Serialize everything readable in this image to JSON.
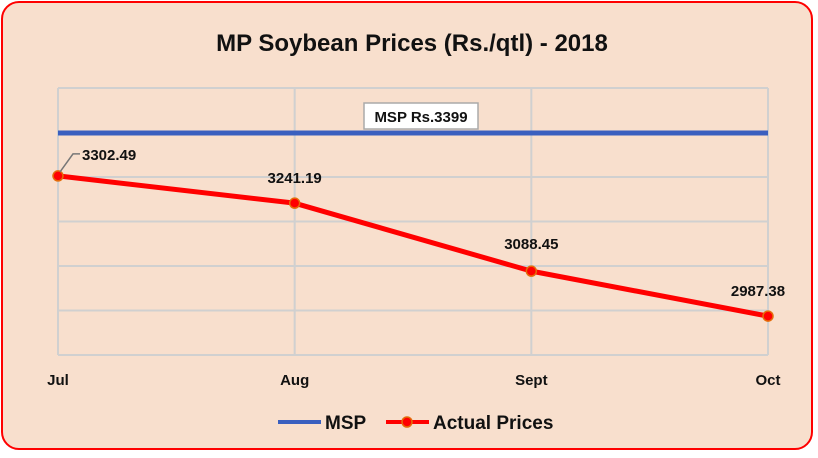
{
  "chart_data": {
    "type": "line",
    "title": "MP Soybean Prices (Rs./qtl) - 2018",
    "categories": [
      "Jul",
      "Aug",
      "Sept",
      "Oct"
    ],
    "series": [
      {
        "name": "MSP",
        "values": [
          3399,
          3399,
          3399,
          3399
        ],
        "color": "#3a5fbf"
      },
      {
        "name": "Actual Prices",
        "values": [
          3302.49,
          3241.19,
          3088.45,
          2987.38
        ],
        "labels": [
          "3302.49",
          "3241.19",
          "3088.45",
          "2987.38"
        ],
        "color": "#ff0000"
      }
    ],
    "annotation": "MSP Rs.3399",
    "ylim": [
      2900,
      3500
    ],
    "ytick_step": 100,
    "grid": true,
    "y_axis_labels_shown": false,
    "legend_placement": "bottom",
    "background_color": "#f8dfcd",
    "border_color": "#ff0000"
  }
}
